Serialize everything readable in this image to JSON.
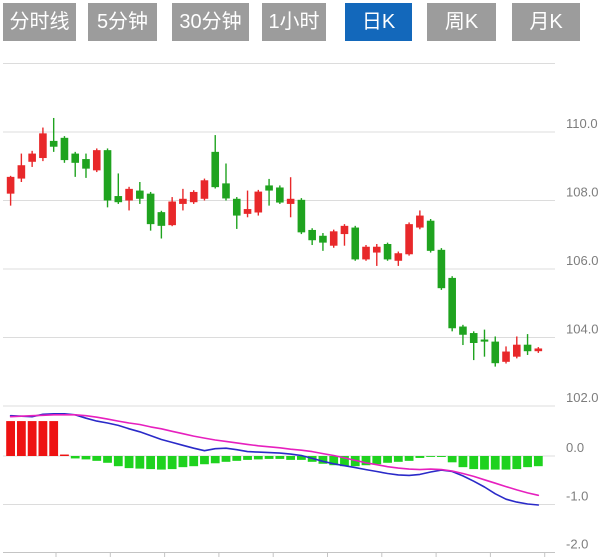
{
  "tabs": {
    "items": [
      {
        "id": "timeline",
        "label": "分时线"
      },
      {
        "id": "5min",
        "label": "5分钟"
      },
      {
        "id": "30min",
        "label": "30分钟"
      },
      {
        "id": "1hour",
        "label": "1小时"
      },
      {
        "id": "daily",
        "label": "日K"
      },
      {
        "id": "weekly",
        "label": "周K"
      },
      {
        "id": "monthly",
        "label": "月K"
      }
    ],
    "active_index": 4,
    "active_color": "#1368bb",
    "inactive_color": "#9c9c9c",
    "text_color": "#ffffff"
  },
  "chart_data": {
    "type": "candlestick+macd",
    "legend_position": "none",
    "grid": true,
    "price_axis": {
      "side": "right",
      "labels": [
        "110.0",
        "108.0",
        "106.0",
        "104.0",
        "102.0"
      ],
      "values": [
        110,
        108,
        106,
        104,
        102
      ],
      "unlabeled_top_gridline": 112,
      "ylim": [
        101.9,
        112.2
      ]
    },
    "indicator_axis": {
      "side": "right",
      "labels": [
        "0.0",
        "-1.0",
        "-2.0"
      ],
      "values": [
        0,
        -1,
        -2
      ],
      "ylim": [
        -2.0,
        0.9
      ]
    },
    "colors": {
      "up": "#e8282a",
      "down": "#1fa31f",
      "hist_up": "#ee1212",
      "hist_down": "#1ed21e",
      "dif_line": "#2a2ac8",
      "dea_line": "#e620be",
      "grid": "#dcdcdc",
      "axis": "#c4c4c4",
      "label": "#7d7d7d"
    },
    "candles_format": [
      "open",
      "high",
      "low",
      "close"
    ],
    "candles": [
      [
        108.2,
        108.72,
        107.85,
        108.69
      ],
      [
        108.64,
        109.37,
        108.54,
        109.03
      ],
      [
        109.13,
        109.45,
        108.98,
        109.37
      ],
      [
        109.24,
        110.13,
        109.15,
        109.96
      ],
      [
        109.74,
        110.41,
        109.42,
        109.57
      ],
      [
        109.83,
        109.88,
        109.1,
        109.18
      ],
      [
        109.37,
        109.42,
        108.69,
        109.1
      ],
      [
        109.21,
        109.37,
        108.66,
        108.93
      ],
      [
        108.88,
        109.52,
        108.83,
        109.47
      ],
      [
        109.47,
        109.52,
        107.8,
        108.0
      ],
      [
        108.13,
        108.79,
        107.9,
        107.95
      ],
      [
        108.0,
        108.4,
        107.71,
        108.34
      ],
      [
        108.29,
        108.54,
        107.9,
        108.05
      ],
      [
        108.2,
        108.25,
        107.12,
        107.31
      ],
      [
        107.66,
        107.7,
        106.89,
        107.26
      ],
      [
        107.28,
        108.1,
        107.25,
        107.97
      ],
      [
        107.9,
        108.34,
        107.71,
        108.05
      ],
      [
        107.95,
        108.3,
        107.9,
        108.25
      ],
      [
        108.05,
        108.64,
        108.0,
        108.59
      ],
      [
        109.42,
        109.91,
        108.35,
        108.39
      ],
      [
        108.5,
        109.08,
        108.0,
        108.06
      ],
      [
        108.05,
        108.1,
        107.17,
        107.56
      ],
      [
        107.61,
        108.29,
        107.51,
        107.75
      ],
      [
        107.65,
        108.31,
        107.56,
        108.26
      ],
      [
        108.44,
        108.63,
        107.85,
        108.29
      ],
      [
        108.38,
        108.44,
        107.9,
        107.94
      ],
      [
        107.9,
        108.68,
        107.51,
        108.05
      ],
      [
        108.02,
        108.07,
        107.02,
        107.07
      ],
      [
        107.14,
        107.19,
        106.7,
        106.84
      ],
      [
        106.97,
        107.05,
        106.53,
        106.77
      ],
      [
        106.68,
        107.15,
        106.62,
        107.1
      ],
      [
        107.02,
        107.31,
        106.68,
        107.26
      ],
      [
        107.21,
        107.26,
        106.24,
        106.28
      ],
      [
        106.28,
        106.7,
        106.24,
        106.65
      ],
      [
        106.48,
        106.73,
        106.09,
        106.65
      ],
      [
        106.73,
        106.77,
        106.24,
        106.28
      ],
      [
        106.24,
        106.51,
        106.09,
        106.46
      ],
      [
        106.43,
        107.36,
        106.39,
        107.31
      ],
      [
        107.21,
        107.71,
        107.16,
        107.56
      ],
      [
        107.41,
        107.46,
        106.48,
        106.53
      ],
      [
        106.56,
        106.61,
        105.39,
        105.44
      ],
      [
        105.74,
        105.79,
        104.18,
        104.27
      ],
      [
        104.32,
        104.37,
        103.78,
        104.08
      ],
      [
        104.13,
        104.18,
        103.34,
        103.84
      ],
      [
        103.94,
        104.23,
        103.44,
        103.88
      ],
      [
        103.88,
        104.03,
        103.15,
        103.25
      ],
      [
        103.29,
        103.74,
        103.24,
        103.59
      ],
      [
        103.44,
        104.03,
        103.39,
        103.79
      ],
      [
        103.79,
        104.1,
        103.49,
        103.6
      ],
      [
        103.6,
        103.72,
        103.55,
        103.68
      ]
    ],
    "macd": {
      "hist": [
        0.72,
        0.72,
        0.72,
        0.72,
        0.72,
        0.03,
        -0.05,
        -0.07,
        -0.1,
        -0.14,
        -0.21,
        -0.25,
        -0.26,
        -0.27,
        -0.28,
        -0.27,
        -0.23,
        -0.21,
        -0.17,
        -0.15,
        -0.12,
        -0.1,
        -0.08,
        -0.07,
        -0.06,
        -0.06,
        -0.08,
        -0.08,
        -0.12,
        -0.16,
        -0.19,
        -0.21,
        -0.21,
        -0.19,
        -0.17,
        -0.14,
        -0.12,
        -0.1,
        -0.04,
        -0.01,
        -0.02,
        -0.13,
        -0.23,
        -0.27,
        -0.28,
        -0.28,
        -0.28,
        -0.27,
        -0.23,
        -0.21
      ],
      "dif": [
        0.83,
        0.82,
        0.81,
        0.86,
        0.87,
        0.87,
        0.85,
        0.78,
        0.72,
        0.68,
        0.63,
        0.56,
        0.5,
        0.42,
        0.34,
        0.28,
        0.22,
        0.16,
        0.11,
        0.15,
        0.16,
        0.13,
        0.09,
        0.08,
        0.07,
        0.06,
        0.04,
        0.01,
        -0.05,
        -0.11,
        -0.16,
        -0.2,
        -0.24,
        -0.28,
        -0.32,
        -0.36,
        -0.39,
        -0.4,
        -0.38,
        -0.33,
        -0.29,
        -0.32,
        -0.41,
        -0.52,
        -0.64,
        -0.78,
        -0.89,
        -0.95,
        -0.99,
        -1.01
      ],
      "dea": [
        0.81,
        0.82,
        0.83,
        0.84,
        0.85,
        0.85,
        0.85,
        0.83,
        0.8,
        0.76,
        0.72,
        0.68,
        0.65,
        0.6,
        0.56,
        0.51,
        0.46,
        0.41,
        0.37,
        0.33,
        0.3,
        0.27,
        0.24,
        0.21,
        0.19,
        0.17,
        0.14,
        0.12,
        0.09,
        0.05,
        0.01,
        -0.04,
        -0.09,
        -0.14,
        -0.18,
        -0.22,
        -0.25,
        -0.27,
        -0.28,
        -0.27,
        -0.28,
        -0.31,
        -0.36,
        -0.42,
        -0.49,
        -0.56,
        -0.63,
        -0.7,
        -0.76,
        -0.81
      ]
    }
  }
}
